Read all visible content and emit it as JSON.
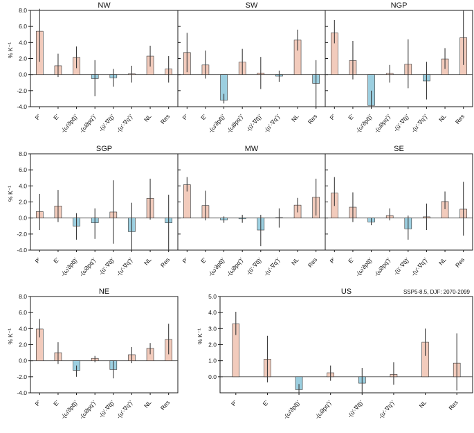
{
  "figure": {
    "scenario_note": "SSP5-8.5, DJF: 2070-2099",
    "ylabel": "% K⁻¹",
    "colors": {
      "positive": "#f2cbbc",
      "negative": "#9ccfe0",
      "errorbar": "#3a3a3a",
      "frame": "#1a1a1a"
    }
  },
  "chart_data": [
    {
      "id": "NW",
      "title": "NW",
      "type": "bar",
      "ylim": [
        -4,
        8
      ],
      "yticks": [
        -4,
        -2,
        0,
        2,
        4,
        6,
        8
      ],
      "categories": [
        "P'",
        "E'",
        "-(ω'∂pq̄)'",
        "-(ω̄∂pq')'",
        "-(ū'·∇q̄)'",
        "-(u'·∇q')'",
        "NL",
        "Res"
      ],
      "values": [
        5.4,
        1.1,
        2.15,
        -0.5,
        -0.4,
        0.1,
        2.3,
        0.7
      ],
      "error_low": [
        1.6,
        -0.3,
        0.8,
        -2.7,
        -1.5,
        -1.0,
        1.0,
        -1.0
      ],
      "error_high": [
        8.2,
        2.6,
        3.5,
        1.8,
        0.7,
        1.1,
        3.6,
        2.3
      ]
    },
    {
      "id": "SW",
      "title": "SW",
      "type": "bar",
      "ylim": [
        -4,
        8
      ],
      "yticks": [
        -4,
        -2,
        0,
        2,
        4,
        6,
        8
      ],
      "categories": [
        "P'",
        "E'",
        "-(ω'∂pq̄)'",
        "-(ω̄∂pq')'",
        "-(ū'·∇q̄)'",
        "-(u'·∇q')'",
        "NL",
        "Res"
      ],
      "values": [
        2.75,
        1.2,
        -3.2,
        1.55,
        0.2,
        -0.2,
        4.3,
        -1.1
      ],
      "error_low": [
        0.3,
        -0.5,
        -3.6,
        0.0,
        -1.8,
        -0.9,
        3.0,
        -4.2
      ],
      "error_high": [
        5.2,
        3.0,
        -2.4,
        3.2,
        2.2,
        0.5,
        5.6,
        1.8
      ]
    },
    {
      "id": "NGP",
      "title": "NGP",
      "type": "bar",
      "ylim": [
        -4,
        8
      ],
      "yticks": [
        -4,
        -2,
        0,
        2,
        4,
        6,
        8
      ],
      "categories": [
        "P'",
        "E'",
        "-(ω'∂pq̄)'",
        "-(ω̄∂pq')'",
        "-(ū'·∇q̄)'",
        "-(u'·∇q')'",
        "NL",
        "Res"
      ],
      "values": [
        5.2,
        1.75,
        -3.85,
        0.15,
        1.3,
        -0.8,
        1.95,
        4.6
      ],
      "error_low": [
        3.9,
        -0.6,
        -4.0,
        -1.0,
        -1.7,
        -3.1,
        0.7,
        1.2
      ],
      "error_high": [
        6.8,
        4.2,
        -2.0,
        1.2,
        4.4,
        1.6,
        3.3,
        8.0
      ]
    },
    {
      "id": "SGP",
      "title": "SGP",
      "type": "bar",
      "ylim": [
        -4,
        8
      ],
      "yticks": [
        -4,
        -2,
        0,
        2,
        4,
        6,
        8
      ],
      "categories": [
        "P'",
        "E'",
        "-(ω'∂pq̄)'",
        "-(ω̄∂pq')'",
        "-(ū'·∇q̄)'",
        "-(u'·∇q')'",
        "NL",
        "Res"
      ],
      "values": [
        0.8,
        1.5,
        -1.0,
        -0.6,
        0.75,
        -1.7,
        2.45,
        -0.6
      ],
      "error_low": [
        -1.5,
        -0.5,
        -2.7,
        -2.6,
        -3.2,
        -4.1,
        -0.2,
        -4.0
      ],
      "error_high": [
        3.0,
        3.5,
        0.6,
        1.2,
        4.7,
        1.9,
        4.9,
        2.9
      ]
    },
    {
      "id": "MW",
      "title": "MW",
      "type": "bar",
      "ylim": [
        -4,
        8
      ],
      "yticks": [
        -4,
        -2,
        0,
        2,
        4,
        6,
        8
      ],
      "categories": [
        "P'",
        "E'",
        "-(ω'∂pq̄)'",
        "-(ω̄∂pq')'",
        "-(ū'·∇q̄)'",
        "-(u'·∇q')'",
        "NL",
        "Res"
      ],
      "values": [
        4.15,
        1.55,
        -0.25,
        -0.1,
        -1.5,
        0.05,
        1.6,
        2.6
      ],
      "error_low": [
        3.3,
        -0.3,
        -0.6,
        -0.6,
        -3.5,
        -1.2,
        0.7,
        0.3
      ],
      "error_high": [
        5.1,
        3.4,
        0.2,
        0.4,
        0.4,
        1.2,
        2.5,
        4.9
      ]
    },
    {
      "id": "SE",
      "title": "SE",
      "type": "bar",
      "ylim": [
        -4,
        8
      ],
      "yticks": [
        -4,
        -2,
        0,
        2,
        4,
        6,
        8
      ],
      "categories": [
        "P'",
        "E'",
        "-(ω'∂pq̄)'",
        "-(ω̄∂pq')'",
        "-(ū'·∇q̄)'",
        "-(u'·∇q')'",
        "NL",
        "Res"
      ],
      "values": [
        3.1,
        1.35,
        -0.5,
        0.3,
        -1.35,
        0.15,
        2.05,
        1.1
      ],
      "error_low": [
        1.5,
        -0.5,
        -0.9,
        -0.3,
        -2.7,
        -1.5,
        1.1,
        -2.2
      ],
      "error_high": [
        5.1,
        3.2,
        0.0,
        1.2,
        0.3,
        1.8,
        3.3,
        4.5
      ]
    },
    {
      "id": "NE",
      "title": "NE",
      "type": "bar",
      "ylim": [
        -4,
        8
      ],
      "yticks": [
        -4,
        -2,
        0,
        2,
        4,
        6,
        8
      ],
      "categories": [
        "P'",
        "E'",
        "-(ω'∂pq̄)'",
        "-(ω̄∂pq')'",
        "-(ū'·∇q̄)'",
        "-(u'·∇q')'",
        "NL",
        "Res"
      ],
      "values": [
        3.95,
        1.0,
        -1.2,
        0.3,
        -1.1,
        0.75,
        1.55,
        2.65
      ],
      "error_low": [
        2.9,
        -0.4,
        -2.0,
        -0.2,
        -2.2,
        -0.3,
        0.8,
        0.8
      ],
      "error_high": [
        5.2,
        2.3,
        -0.6,
        0.6,
        0.0,
        1.7,
        2.2,
        4.6
      ]
    },
    {
      "id": "US",
      "title": "US",
      "type": "bar",
      "ylim": [
        -1,
        5
      ],
      "yticks": [
        0,
        1,
        2,
        3,
        4,
        5
      ],
      "categories": [
        "P'",
        "E'",
        "-(ω'∂pq̄)'",
        "-(ω̄∂pq')'",
        "-(ū'·∇q̄)'",
        "-(u'·∇q')'",
        "NL",
        "Res"
      ],
      "values": [
        3.3,
        1.1,
        -0.8,
        0.25,
        -0.4,
        0.15,
        2.15,
        0.85
      ],
      "error_low": [
        2.6,
        -0.35,
        -1.0,
        -0.25,
        -1.05,
        -0.5,
        1.3,
        -0.85
      ],
      "error_high": [
        4.05,
        2.55,
        -0.45,
        0.7,
        0.55,
        0.9,
        3.0,
        2.7
      ]
    }
  ]
}
